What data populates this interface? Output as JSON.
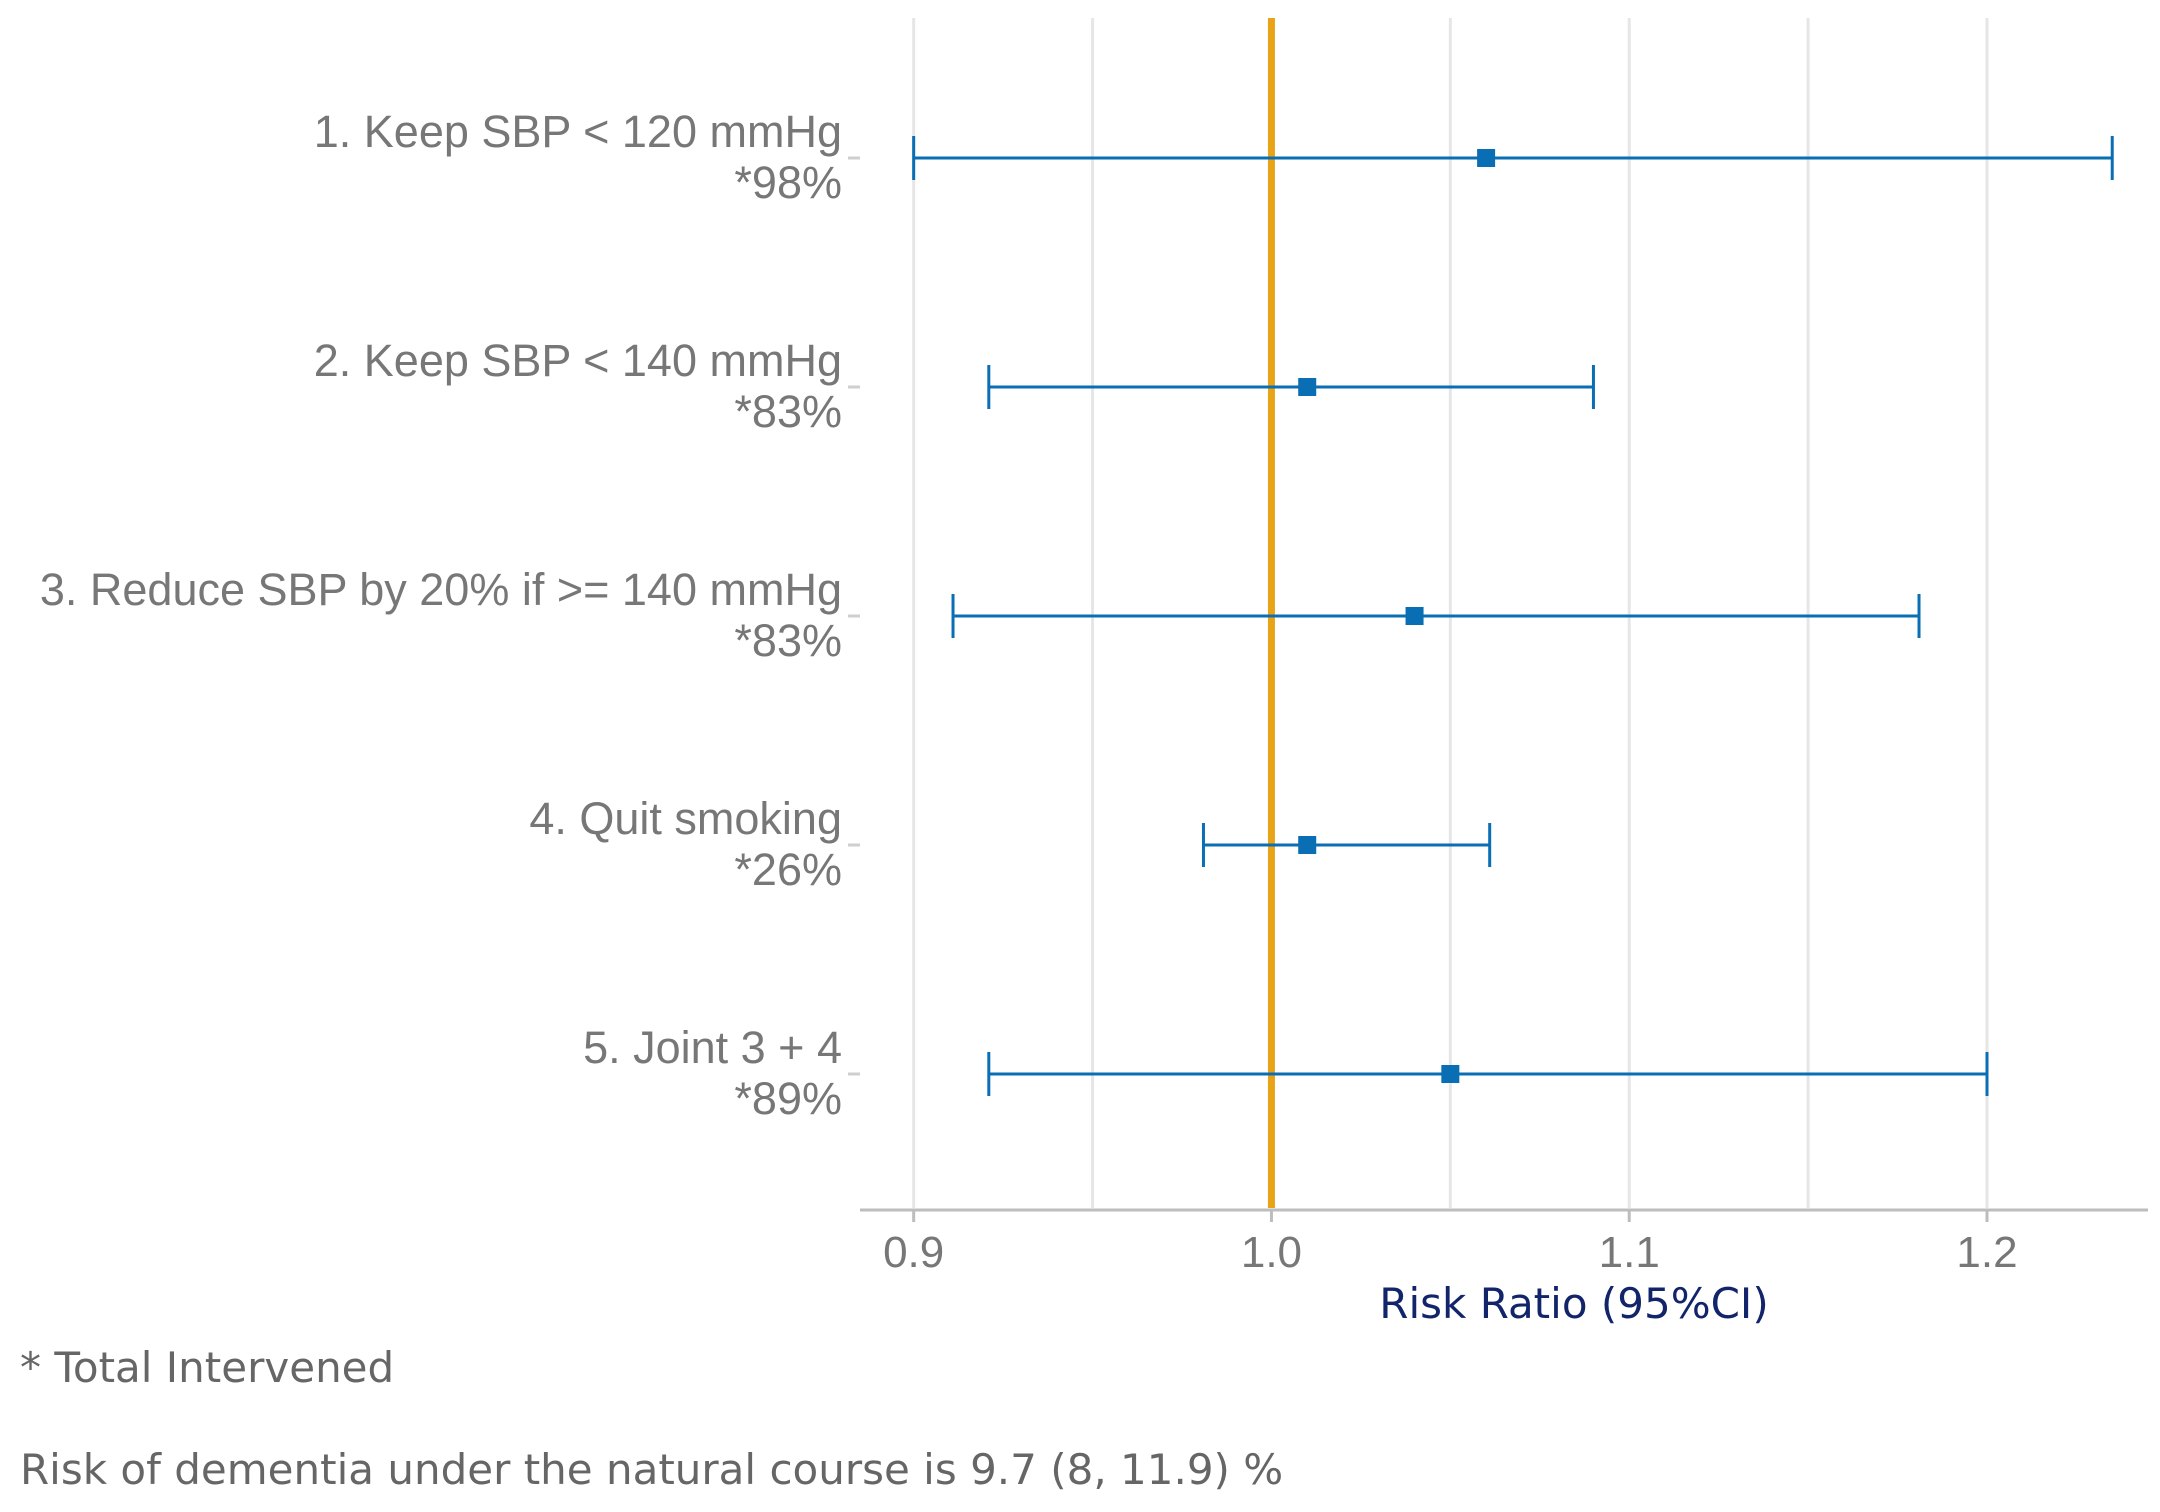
{
  "chart_data": {
    "type": "forest",
    "xlabel": "Risk Ratio (95%CI)",
    "xlim": [
      0.885,
      1.245
    ],
    "xticks": [
      {
        "value": 0.9,
        "label": "0.9"
      },
      {
        "value": 1.0,
        "label": "1.0"
      },
      {
        "value": 1.1,
        "label": "1.1"
      },
      {
        "value": 1.2,
        "label": "1.2"
      }
    ],
    "minor_gridlines": [
      0.95,
      1.05,
      1.15
    ],
    "reference_line": {
      "value": 1.0,
      "color": "#e8a317"
    },
    "point_color": "#0a6eb4",
    "grid": true,
    "rows": [
      {
        "label": "1. Keep SBP < 120 mmHg",
        "intervened": "*98%",
        "estimate": 1.06,
        "lower": 0.9,
        "upper": 1.235
      },
      {
        "label": "2. Keep SBP < 140 mmHg",
        "intervened": "*83%",
        "estimate": 1.01,
        "lower": 0.921,
        "upper": 1.09
      },
      {
        "label": "3. Reduce SBP by 20% if >= 140 mmHg",
        "intervened": "*83%",
        "estimate": 1.04,
        "lower": 0.911,
        "upper": 1.181
      },
      {
        "label": "4. Quit smoking",
        "intervened": "*26%",
        "estimate": 1.01,
        "lower": 0.981,
        "upper": 1.061
      },
      {
        "label": "5. Joint 3 + 4",
        "intervened": "*89%",
        "estimate": 1.05,
        "lower": 0.921,
        "upper": 1.2
      }
    ]
  },
  "notes": {
    "total_intervened": "* Total Intervened",
    "natural_course": "Risk of dementia under the natural course is 9.7 (8, 11.9) %"
  }
}
